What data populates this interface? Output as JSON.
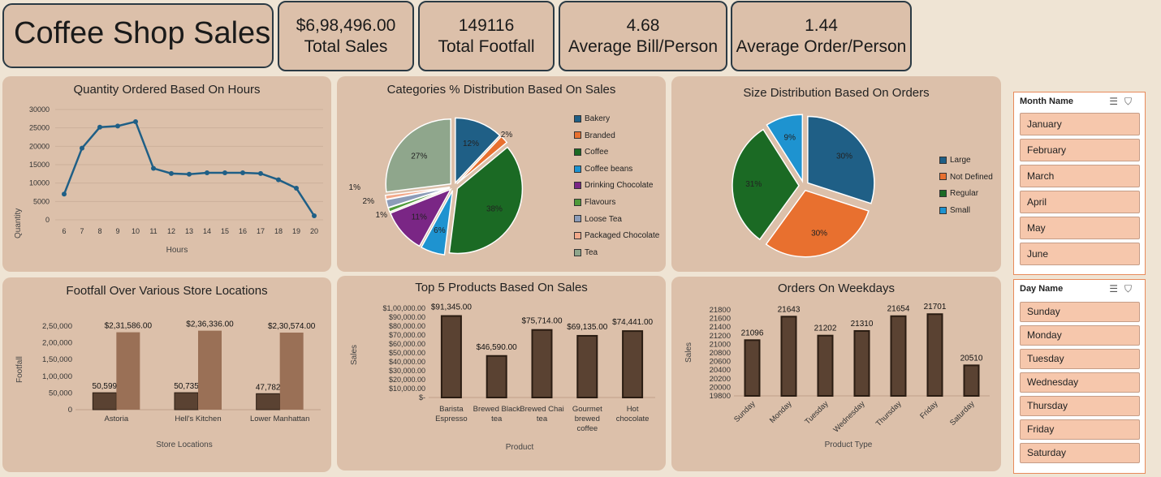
{
  "title": "Coffee Shop Sales",
  "kpis": [
    {
      "value": "$6,98,496.00",
      "label": "Total Sales"
    },
    {
      "value": "149116",
      "label": "Total Footfall"
    },
    {
      "value": "4.68",
      "label": "Average Bill/Person"
    },
    {
      "value": "1.44",
      "label": "Average Order/Person"
    }
  ],
  "colors": {
    "bg": "#efe4d4",
    "panel": "#dcc0aa",
    "line": "#1f5f86",
    "bar_dark": "#5a4232",
    "bar_light": "#9a7056",
    "slicer_item": "#f6c7ac"
  },
  "charts": {
    "hours": {
      "title": "Quantity Ordered Based On Hours",
      "xlabel": "Hours",
      "ylabel": "Quantity"
    },
    "categories": {
      "title": "Categories % Distribution Based On Sales"
    },
    "size": {
      "title": "Size Distribution Based On Orders"
    },
    "footfall": {
      "title": "Footfall Over Various Store Locations",
      "xlabel": "Store Locations",
      "ylabel": "Footfall"
    },
    "top5": {
      "title": "Top 5 Products Based On Sales",
      "xlabel": "Product",
      "ylabel": "Sales"
    },
    "weekdays": {
      "title": "Orders On Weekdays",
      "xlabel": "Product Type",
      "ylabel": "Sales"
    }
  },
  "chart_data": [
    {
      "type": "line",
      "title": "Quantity Ordered Based On Hours",
      "xlabel": "Hours",
      "ylabel": "Quantity",
      "x": [
        6,
        7,
        8,
        9,
        10,
        11,
        12,
        13,
        14,
        15,
        16,
        17,
        18,
        19,
        20
      ],
      "values": [
        7000,
        19500,
        25200,
        25500,
        26700,
        14000,
        12600,
        12400,
        12800,
        12800,
        12800,
        12600,
        10900,
        8600,
        1100
      ],
      "ylim": [
        0,
        30000
      ],
      "yticks": [
        "0",
        "5000",
        "10000",
        "15000",
        "20000",
        "25000",
        "30000"
      ],
      "grid": true
    },
    {
      "type": "pie",
      "title": "Categories % Distribution Based On Sales",
      "categories": [
        "Bakery",
        "Branded",
        "Coffee",
        "Coffee beans",
        "Drinking Chocolate",
        "Flavours",
        "Loose Tea",
        "Packaged Chocolate",
        "Tea"
      ],
      "values": [
        12,
        2,
        38,
        6,
        11,
        1,
        2,
        1,
        27
      ],
      "labels": [
        "12%",
        "2%",
        "38%",
        "6%",
        "11%",
        "1%",
        "2%",
        "1%",
        "27%"
      ],
      "colors": [
        "#1f5f86",
        "#e8702f",
        "#1b6a24",
        "#1e93d0",
        "#7a2685",
        "#4f9a3a",
        "#8c9cb8",
        "#f3a98a",
        "#8fa68c"
      ],
      "legend": "right"
    },
    {
      "type": "pie",
      "title": "Size Distribution Based On Orders",
      "categories": [
        "Large",
        "Not Defined",
        "Regular",
        "Small"
      ],
      "values": [
        30,
        30,
        31,
        9
      ],
      "labels": [
        "30%",
        "30%",
        "31%",
        "9%"
      ],
      "colors": [
        "#1f5f86",
        "#e8702f",
        "#1b6a24",
        "#1e93d0"
      ],
      "legend": "right"
    },
    {
      "type": "bar",
      "title": "Footfall Over Various Store Locations",
      "xlabel": "Store Locations",
      "ylabel": "Footfall",
      "categories": [
        "Astoria",
        "Hell's Kitchen",
        "Lower Manhattan"
      ],
      "series": [
        {
          "values": [
            50599,
            50735,
            47782
          ],
          "labels": [
            "50,599",
            "50,735",
            "47,782"
          ]
        },
        {
          "values": [
            231586,
            236336,
            230574
          ],
          "labels": [
            "$2,31,586.00",
            "$2,36,336.00",
            "$2,30,574.00"
          ]
        }
      ],
      "ylim": [
        0,
        250000
      ],
      "yticks": [
        "0",
        "50,000",
        "1,00,000",
        "1,50,000",
        "2,00,000",
        "2,50,000"
      ]
    },
    {
      "type": "bar",
      "title": "Top 5 Products Based On Sales",
      "xlabel": "Product",
      "ylabel": "Sales",
      "categories": [
        [
          "Barista",
          "Espresso"
        ],
        [
          "Brewed Black",
          "tea"
        ],
        [
          "Brewed Chai",
          "tea"
        ],
        [
          "Gourmet",
          "brewed",
          "coffee"
        ],
        [
          "Hot",
          "chocolate"
        ]
      ],
      "values": [
        91345,
        46590,
        75714,
        69135,
        74441
      ],
      "labels": [
        "$91,345.00",
        "$46,590.00",
        "$75,714.00",
        "$69,135.00",
        "$74,441.00"
      ],
      "ylim": [
        0,
        100000
      ],
      "yticks": [
        "$-",
        "$10,000.00",
        "$20,000.00",
        "$30,000.00",
        "$40,000.00",
        "$50,000.00",
        "$60,000.00",
        "$70,000.00",
        "$80,000.00",
        "$90,000.00",
        "$1,00,000.00"
      ]
    },
    {
      "type": "bar",
      "title": "Orders On Weekdays",
      "xlabel": "Product Type",
      "ylabel": "Sales",
      "categories": [
        "Sunday",
        "Monday",
        "Tuesday",
        "Wednesday",
        "Thursday",
        "Friday",
        "Saturday"
      ],
      "values": [
        21096,
        21643,
        21202,
        21310,
        21654,
        21701,
        20510
      ],
      "labels": [
        "21096",
        "21643",
        "21202",
        "21310",
        "21654",
        "21701",
        "20510"
      ],
      "ylim": [
        19800,
        21800
      ],
      "yticks": [
        "19800",
        "20000",
        "20200",
        "20400",
        "20600",
        "20800",
        "21000",
        "21200",
        "21400",
        "21600",
        "21800"
      ]
    }
  ],
  "slicers": {
    "month": {
      "title": "Month Name",
      "items": [
        "January",
        "February",
        "March",
        "April",
        "May",
        "June"
      ]
    },
    "day": {
      "title": "Day Name",
      "items": [
        "Sunday",
        "Monday",
        "Tuesday",
        "Wednesday",
        "Thursday",
        "Friday",
        "Saturday"
      ]
    }
  }
}
